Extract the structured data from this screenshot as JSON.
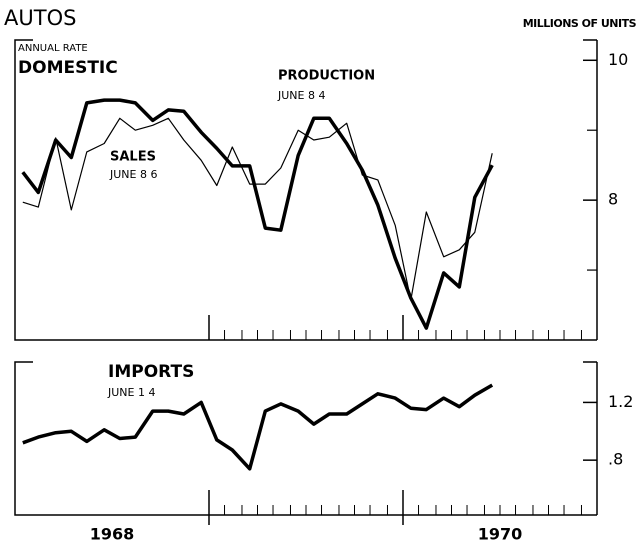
{
  "chart_data": [
    {
      "type": "line",
      "title": "AUTOS",
      "y_label": "MILLIONS OF UNITS",
      "annotations": [
        "ANNUAL RATE",
        "DOMESTIC",
        "PRODUCTION",
        "JUNE 8 4",
        "SALES",
        "JUNE 8 6"
      ],
      "x": [
        1968.04,
        1968.12,
        1968.21,
        1968.29,
        1968.37,
        1968.46,
        1968.54,
        1968.62,
        1968.71,
        1968.79,
        1968.87,
        1968.96,
        1969.04,
        1969.12,
        1969.21,
        1969.29,
        1969.37,
        1969.46,
        1969.54,
        1969.62,
        1969.71,
        1969.79,
        1969.87,
        1969.96,
        1970.04,
        1970.12,
        1970.21,
        1970.29,
        1970.37,
        1970.46
      ],
      "series": [
        {
          "name": "PRODUCTION",
          "color": "#000000",
          "values": [
            8.4,
            8.11,
            8.86,
            8.61,
            9.39,
            9.43,
            9.43,
            9.39,
            9.14,
            9.29,
            9.27,
            8.97,
            8.74,
            8.49,
            8.49,
            7.6,
            7.57,
            8.64,
            9.17,
            9.17,
            8.81,
            8.43,
            7.93,
            7.17,
            6.6,
            6.17,
            6.96,
            6.76,
            8.04,
            8.5
          ]
        },
        {
          "name": "SALES",
          "color": "#000000",
          "values": [
            7.97,
            7.9,
            8.89,
            7.86,
            8.69,
            8.81,
            9.17,
            9.0,
            9.07,
            9.17,
            8.86,
            8.57,
            8.21,
            8.76,
            8.23,
            8.23,
            8.46,
            9.0,
            8.86,
            8.9,
            9.1,
            8.36,
            8.29,
            7.64,
            6.57,
            7.83,
            7.19,
            7.29,
            7.54,
            8.67
          ]
        }
      ],
      "xlim": [
        1968,
        1971
      ],
      "x_major_ticks": [
        1969,
        1970
      ],
      "x_minor_ticks": [
        1969.08,
        1969.17,
        1969.25,
        1969.33,
        1969.42,
        1969.5,
        1969.58,
        1969.67,
        1969.75,
        1969.83,
        1969.92,
        1970.08,
        1970.17,
        1970.25,
        1970.33,
        1970.42,
        1970.5,
        1970.58,
        1970.67,
        1970.75,
        1970.83,
        1970.92
      ],
      "ylim": [
        6,
        10.29
      ],
      "yticks": [
        8,
        10
      ],
      "y_minor_ticks": [
        7,
        9
      ]
    },
    {
      "type": "line",
      "annotations": [
        "IMPORTS",
        "JUNE 1 4"
      ],
      "x": [
        1968.04,
        1968.12,
        1968.21,
        1968.29,
        1968.37,
        1968.46,
        1968.54,
        1968.62,
        1968.71,
        1968.79,
        1968.87,
        1968.96,
        1969.04,
        1969.12,
        1969.21,
        1969.29,
        1969.37,
        1969.46,
        1969.54,
        1969.62,
        1969.71,
        1969.79,
        1969.87,
        1969.96,
        1970.04,
        1970.12,
        1970.21,
        1970.29,
        1970.37,
        1970.46
      ],
      "series": [
        {
          "name": "IMPORTS",
          "color": "#000000",
          "values": [
            0.92,
            0.96,
            0.99,
            1.0,
            0.93,
            1.01,
            0.95,
            0.96,
            1.14,
            1.14,
            1.12,
            1.2,
            0.94,
            0.87,
            0.74,
            1.14,
            1.19,
            1.14,
            1.05,
            1.12,
            1.12,
            1.19,
            1.26,
            1.23,
            1.16,
            1.15,
            1.23,
            1.17,
            1.25,
            1.32
          ]
        }
      ],
      "xlim": [
        1968,
        1971
      ],
      "x_major_ticks": [
        1969,
        1970
      ],
      "x_minor_ticks": [
        1969.08,
        1969.17,
        1969.25,
        1969.33,
        1969.42,
        1969.5,
        1969.58,
        1969.67,
        1969.75,
        1969.83,
        1969.92,
        1970.08,
        1970.17,
        1970.25,
        1970.33,
        1970.42,
        1970.5,
        1970.58,
        1970.67,
        1970.75,
        1970.83,
        1970.92
      ],
      "xticks": [
        {
          "value": 1968.5,
          "label": "1968"
        },
        {
          "value": 1970.5,
          "label": "1970"
        }
      ],
      "ylim": [
        0.42,
        1.48
      ],
      "yticks": [
        {
          "value": 0.8,
          "label": ".8"
        },
        1.2
      ]
    }
  ]
}
